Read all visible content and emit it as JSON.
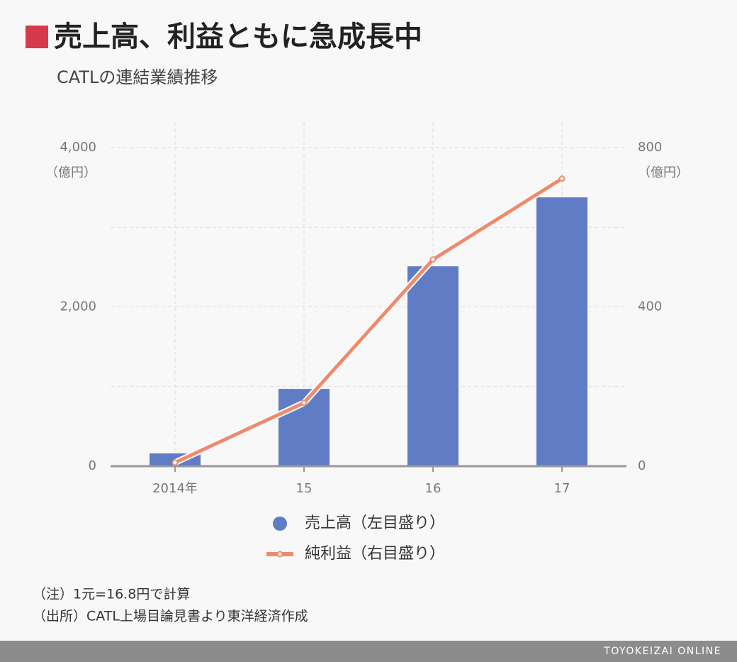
{
  "chart_data": {
    "type": "bar_line",
    "title": "売上高、利益ともに急成長中",
    "subtitle": "CATLの連結業績推移",
    "categories": [
      "2014年",
      "15",
      "16",
      "17"
    ],
    "series": [
      {
        "name": "売上高（左目盛り）",
        "type": "bar",
        "color": "#5f7cc4",
        "values": [
          160,
          970,
          2510,
          3375
        ]
      },
      {
        "name": "純利益（右目盛り）",
        "type": "line",
        "axis": "y2",
        "color": "#ee8a6e",
        "values": [
          9,
          159,
          519,
          722
        ]
      }
    ],
    "ylim": [
      0,
      4000
    ],
    "yticks": [
      0,
      {
        "value": 2000,
        "label": "2,000"
      },
      {
        "value": 4000,
        "label": "4,000"
      }
    ],
    "ygrid": [
      1000,
      2000,
      3000,
      4000
    ],
    "y_unit": "（億円）",
    "y2lim": [
      0,
      800
    ],
    "y2ticks": [
      0,
      400,
      800
    ],
    "y2_unit": "（億円）",
    "grid": true,
    "notes": [
      "（注）1元=16.8円で計算",
      "（出所）CATL上場目論見書より東洋経済作成"
    ]
  },
  "brand": "TOYOKEIZAI ONLINE"
}
